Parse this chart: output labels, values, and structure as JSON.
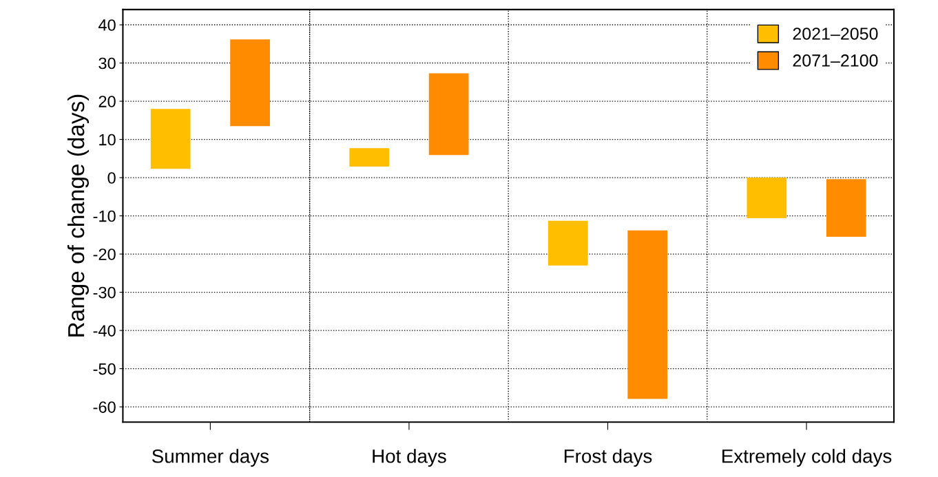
{
  "chart_data": {
    "type": "bar",
    "ylabel": "Range of change (days)",
    "categories": [
      "Summer days",
      "Hot days",
      "Frost days",
      "Extremely cold days"
    ],
    "series": [
      {
        "name": "2021–2050",
        "color": "#ffbf00",
        "base": [
          2.3,
          2.9,
          -23.0,
          -10.6
        ],
        "values": [
          15.7,
          4.8,
          11.7,
          10.6
        ]
      },
      {
        "name": "2071–2100",
        "color": "#ff8c00",
        "base": [
          13.5,
          5.9,
          -57.9,
          -15.5
        ],
        "values": [
          22.7,
          21.4,
          44.1,
          15.1
        ]
      }
    ],
    "ylim": [
      -64,
      44
    ],
    "yticks": [
      -60,
      -50,
      -40,
      -30,
      -20,
      -10,
      0,
      10,
      20,
      30,
      40
    ],
    "grid": "y",
    "legend": "top right"
  }
}
